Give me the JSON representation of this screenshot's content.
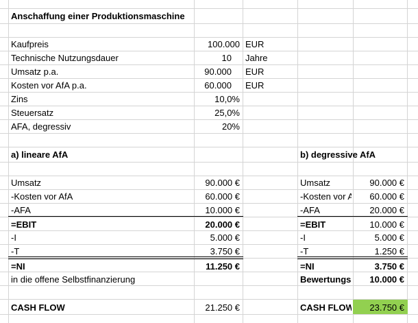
{
  "title": "Anschaffung einer Produktionsmaschine",
  "inputs": [
    {
      "label": "Kaufpreis",
      "value": "100.000",
      "unit": "EUR"
    },
    {
      "label": "Technische Nutzungsdauer",
      "value": "10",
      "unit": "Jahre"
    },
    {
      "label": "Umsatz p.a.",
      "value": "90.000",
      "unit": "EUR"
    },
    {
      "label": "Kosten vor AfA p.a.",
      "value": "60.000",
      "unit": "EUR"
    },
    {
      "label": "Zins",
      "value": "10,0%",
      "unit": ""
    },
    {
      "label": "Steuersatz",
      "value": "25,0%",
      "unit": ""
    },
    {
      "label": "AFA, degressiv",
      "value": "20%",
      "unit": ""
    }
  ],
  "linear": {
    "heading": "a) lineare AfA",
    "rows": [
      {
        "label": "Umsatz",
        "value": "90.000 €"
      },
      {
        "label": "-Kosten vor AfA",
        "value": "60.000 €"
      },
      {
        "label": "-AFA",
        "value": "10.000 €"
      },
      {
        "label": "=EBIT",
        "value": "20.000 €"
      },
      {
        "label": "-I",
        "value": "5.000 €"
      },
      {
        "label": "-T",
        "value": "3.750 €"
      },
      {
        "label": "=NI",
        "value": "11.250 €"
      },
      {
        "label": "in die offene Selbstfinanzierung",
        "value": ""
      }
    ],
    "cashflow_label": "CASH FLOW",
    "cashflow_value": "21.250 €"
  },
  "degressive": {
    "heading": "b) degressive AfA",
    "rows": [
      {
        "label": "Umsatz",
        "value": "90.000 €"
      },
      {
        "label": "-Kosten vor AfA",
        "value": "60.000 €"
      },
      {
        "label": "-AFA",
        "value": "20.000 €"
      },
      {
        "label": "=EBIT",
        "value": "10.000 €"
      },
      {
        "label": "-I",
        "value": "5.000 €"
      },
      {
        "label": "-T",
        "value": "1.250 €"
      },
      {
        "label": "=NI",
        "value": "3.750 €"
      },
      {
        "label": "Bewertungsreserve",
        "value": "10.000 €"
      }
    ],
    "cashflow_label": "CASH FLOW",
    "cashflow_value": "23.750 €"
  },
  "colors": {
    "grid": "#d4d4d4",
    "highlight": "#92d050"
  }
}
